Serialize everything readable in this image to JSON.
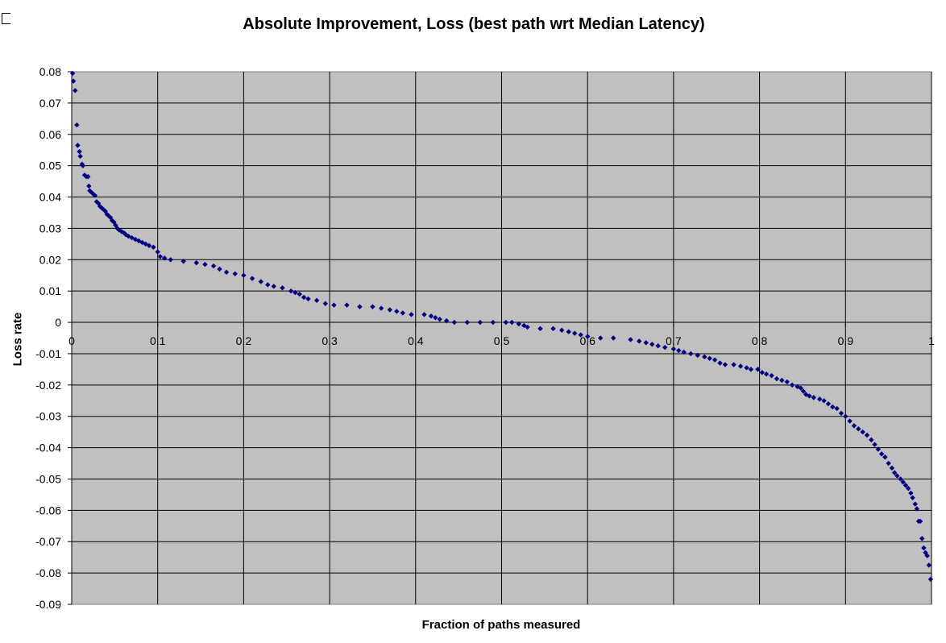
{
  "chart_data": {
    "type": "scatter",
    "title": "Absolute Improvement, Loss (best path wrt Median Latency)",
    "xlabel": "Fraction of paths measured",
    "ylabel": "Loss rate",
    "xlim": [
      0,
      1
    ],
    "ylim": [
      -0.09,
      0.08
    ],
    "grid": true,
    "legend": "none",
    "x_ticks": [
      "0",
      "0.1",
      "0.2",
      "0.3",
      "0.4",
      "0.5",
      "0.6",
      "0.7",
      "0.8",
      "0.9",
      "1"
    ],
    "y_ticks": [
      "0.08",
      "0.07",
      "0.06",
      "0.05",
      "0.04",
      "0.03",
      "0.02",
      "0.01",
      "0",
      "-0.01",
      "-0.02",
      "-0.03",
      "-0.04",
      "-0.05",
      "-0.06",
      "-0.07",
      "-0.08",
      "-0.09"
    ],
    "colors": {
      "plot_bg": "#c0c0c0",
      "grid": "#000000",
      "marker": "#000080"
    },
    "series": [
      {
        "marker": "diamond",
        "points": [
          [
            0.001,
            0.0795
          ],
          [
            0.002,
            0.077
          ],
          [
            0.004,
            0.074
          ],
          [
            0.006,
            0.063
          ],
          [
            0.007,
            0.0565
          ],
          [
            0.009,
            0.0545
          ],
          [
            0.01,
            0.053
          ],
          [
            0.012,
            0.0505
          ],
          [
            0.013,
            0.05
          ],
          [
            0.015,
            0.047
          ],
          [
            0.017,
            0.0465
          ],
          [
            0.019,
            0.0465
          ],
          [
            0.02,
            0.0435
          ],
          [
            0.021,
            0.042
          ],
          [
            0.023,
            0.0415
          ],
          [
            0.025,
            0.041
          ],
          [
            0.027,
            0.0405
          ],
          [
            0.029,
            0.0385
          ],
          [
            0.031,
            0.038
          ],
          [
            0.033,
            0.037
          ],
          [
            0.035,
            0.0365
          ],
          [
            0.037,
            0.036
          ],
          [
            0.039,
            0.0355
          ],
          [
            0.041,
            0.0345
          ],
          [
            0.043,
            0.034
          ],
          [
            0.045,
            0.0335
          ],
          [
            0.047,
            0.0325
          ],
          [
            0.049,
            0.032
          ],
          [
            0.051,
            0.031
          ],
          [
            0.053,
            0.03
          ],
          [
            0.055,
            0.0295
          ],
          [
            0.058,
            0.029
          ],
          [
            0.061,
            0.0285
          ],
          [
            0.063,
            0.028
          ],
          [
            0.066,
            0.0275
          ],
          [
            0.07,
            0.027
          ],
          [
            0.074,
            0.0265
          ],
          [
            0.078,
            0.026
          ],
          [
            0.082,
            0.0255
          ],
          [
            0.086,
            0.025
          ],
          [
            0.09,
            0.0245
          ],
          [
            0.095,
            0.024
          ],
          [
            0.1,
            0.0225
          ],
          [
            0.103,
            0.021
          ],
          [
            0.108,
            0.0205
          ],
          [
            0.115,
            0.02
          ],
          [
            0.13,
            0.0195
          ],
          [
            0.145,
            0.019
          ],
          [
            0.155,
            0.0185
          ],
          [
            0.165,
            0.018
          ],
          [
            0.172,
            0.017
          ],
          [
            0.18,
            0.016
          ],
          [
            0.19,
            0.0155
          ],
          [
            0.2,
            0.015
          ],
          [
            0.21,
            0.014
          ],
          [
            0.22,
            0.013
          ],
          [
            0.228,
            0.012
          ],
          [
            0.235,
            0.0115
          ],
          [
            0.245,
            0.011
          ],
          [
            0.255,
            0.01
          ],
          [
            0.26,
            0.0095
          ],
          [
            0.265,
            0.009
          ],
          [
            0.27,
            0.008
          ],
          [
            0.275,
            0.0075
          ],
          [
            0.285,
            0.007
          ],
          [
            0.295,
            0.006
          ],
          [
            0.305,
            0.0055
          ],
          [
            0.32,
            0.0055
          ],
          [
            0.335,
            0.005
          ],
          [
            0.35,
            0.005
          ],
          [
            0.36,
            0.0045
          ],
          [
            0.37,
            0.004
          ],
          [
            0.378,
            0.0035
          ],
          [
            0.385,
            0.003
          ],
          [
            0.395,
            0.0025
          ],
          [
            0.41,
            0.0025
          ],
          [
            0.418,
            0.002
          ],
          [
            0.423,
            0.0015
          ],
          [
            0.428,
            0.001
          ],
          [
            0.436,
            0.0005
          ],
          [
            0.445,
            0.0
          ],
          [
            0.46,
            0.0
          ],
          [
            0.475,
            0.0
          ],
          [
            0.49,
            0.0
          ],
          [
            0.505,
            0.0
          ],
          [
            0.512,
            0.0
          ],
          [
            0.52,
            -0.0005
          ],
          [
            0.526,
            -0.001
          ],
          [
            0.53,
            -0.0015
          ],
          [
            0.545,
            -0.002
          ],
          [
            0.56,
            -0.002
          ],
          [
            0.57,
            -0.0025
          ],
          [
            0.578,
            -0.003
          ],
          [
            0.585,
            -0.0035
          ],
          [
            0.592,
            -0.004
          ],
          [
            0.6,
            -0.0045
          ],
          [
            0.615,
            -0.005
          ],
          [
            0.63,
            -0.005
          ],
          [
            0.65,
            -0.0055
          ],
          [
            0.66,
            -0.006
          ],
          [
            0.668,
            -0.0065
          ],
          [
            0.675,
            -0.007
          ],
          [
            0.682,
            -0.0075
          ],
          [
            0.69,
            -0.008
          ],
          [
            0.7,
            -0.0085
          ],
          [
            0.706,
            -0.009
          ],
          [
            0.712,
            -0.0095
          ],
          [
            0.72,
            -0.01
          ],
          [
            0.728,
            -0.0105
          ],
          [
            0.736,
            -0.011
          ],
          [
            0.742,
            -0.0115
          ],
          [
            0.748,
            -0.012
          ],
          [
            0.754,
            -0.013
          ],
          [
            0.76,
            -0.0135
          ],
          [
            0.77,
            -0.0135
          ],
          [
            0.778,
            -0.014
          ],
          [
            0.785,
            -0.0145
          ],
          [
            0.79,
            -0.015
          ],
          [
            0.798,
            -0.015
          ],
          [
            0.803,
            -0.016
          ],
          [
            0.808,
            -0.0165
          ],
          [
            0.814,
            -0.017
          ],
          [
            0.82,
            -0.018
          ],
          [
            0.826,
            -0.0185
          ],
          [
            0.832,
            -0.019
          ],
          [
            0.838,
            -0.02
          ],
          [
            0.844,
            -0.0205
          ],
          [
            0.848,
            -0.021
          ],
          [
            0.851,
            -0.022
          ],
          [
            0.854,
            -0.023
          ],
          [
            0.858,
            -0.0235
          ],
          [
            0.863,
            -0.024
          ],
          [
            0.87,
            -0.0245
          ],
          [
            0.875,
            -0.025
          ],
          [
            0.88,
            -0.026
          ],
          [
            0.885,
            -0.027
          ],
          [
            0.89,
            -0.0275
          ],
          [
            0.895,
            -0.029
          ],
          [
            0.9,
            -0.03
          ],
          [
            0.905,
            -0.0315
          ],
          [
            0.91,
            -0.033
          ],
          [
            0.915,
            -0.034
          ],
          [
            0.92,
            -0.035
          ],
          [
            0.925,
            -0.036
          ],
          [
            0.93,
            -0.0375
          ],
          [
            0.934,
            -0.039
          ],
          [
            0.938,
            -0.0405
          ],
          [
            0.942,
            -0.042
          ],
          [
            0.946,
            -0.043
          ],
          [
            0.95,
            -0.045
          ],
          [
            0.954,
            -0.0465
          ],
          [
            0.957,
            -0.048
          ],
          [
            0.96,
            -0.049
          ],
          [
            0.964,
            -0.05
          ],
          [
            0.967,
            -0.051
          ],
          [
            0.97,
            -0.052
          ],
          [
            0.973,
            -0.053
          ],
          [
            0.976,
            -0.0545
          ],
          [
            0.978,
            -0.056
          ],
          [
            0.981,
            -0.058
          ],
          [
            0.983,
            -0.0595
          ],
          [
            0.985,
            -0.0635
          ],
          [
            0.987,
            -0.0635
          ],
          [
            0.989,
            -0.069
          ],
          [
            0.991,
            -0.072
          ],
          [
            0.993,
            -0.0735
          ],
          [
            0.995,
            -0.0745
          ],
          [
            0.997,
            -0.0775
          ],
          [
            0.999,
            -0.082
          ]
        ]
      }
    ]
  }
}
